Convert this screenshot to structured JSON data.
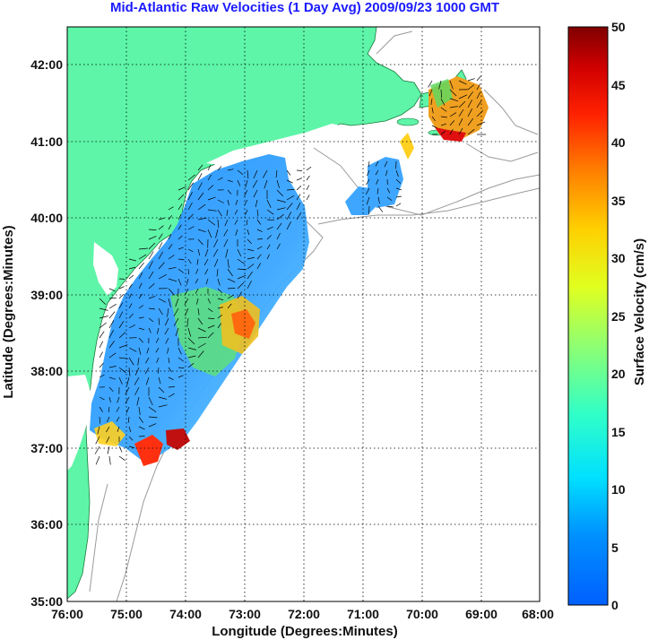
{
  "title": "Mid-Atlantic Raw Velocities (1 Day Avg) 2009/09/23 1000 GMT",
  "x_axis": {
    "label": "Longitude (Degrees:Minutes)",
    "ticks": [
      "76:00",
      "75:00",
      "74:00",
      "73:00",
      "72:00",
      "71:00",
      "70:00",
      "69:00",
      "68:00"
    ]
  },
  "y_axis": {
    "label": "Latitude (Degrees:Minutes)",
    "ticks": [
      "35:00",
      "36:00",
      "37:00",
      "38:00",
      "39:00",
      "40:00",
      "41:00",
      "42:00"
    ]
  },
  "colorbar": {
    "label": "Surface Velocity (cm/s)",
    "ticks": [
      "0",
      "5",
      "10",
      "15",
      "20",
      "25",
      "30",
      "35",
      "40",
      "45",
      "50"
    ],
    "min": 0,
    "max": 50,
    "colormap": "jet"
  },
  "colors": {
    "land": "#5ef5a8",
    "ocean": "#ffffff",
    "bathymetry": "#999999",
    "grid": "#000000",
    "title": "#1a1aff"
  },
  "map_extent": {
    "lon": [
      -76,
      -68
    ],
    "lat": [
      35,
      42.5
    ]
  }
}
